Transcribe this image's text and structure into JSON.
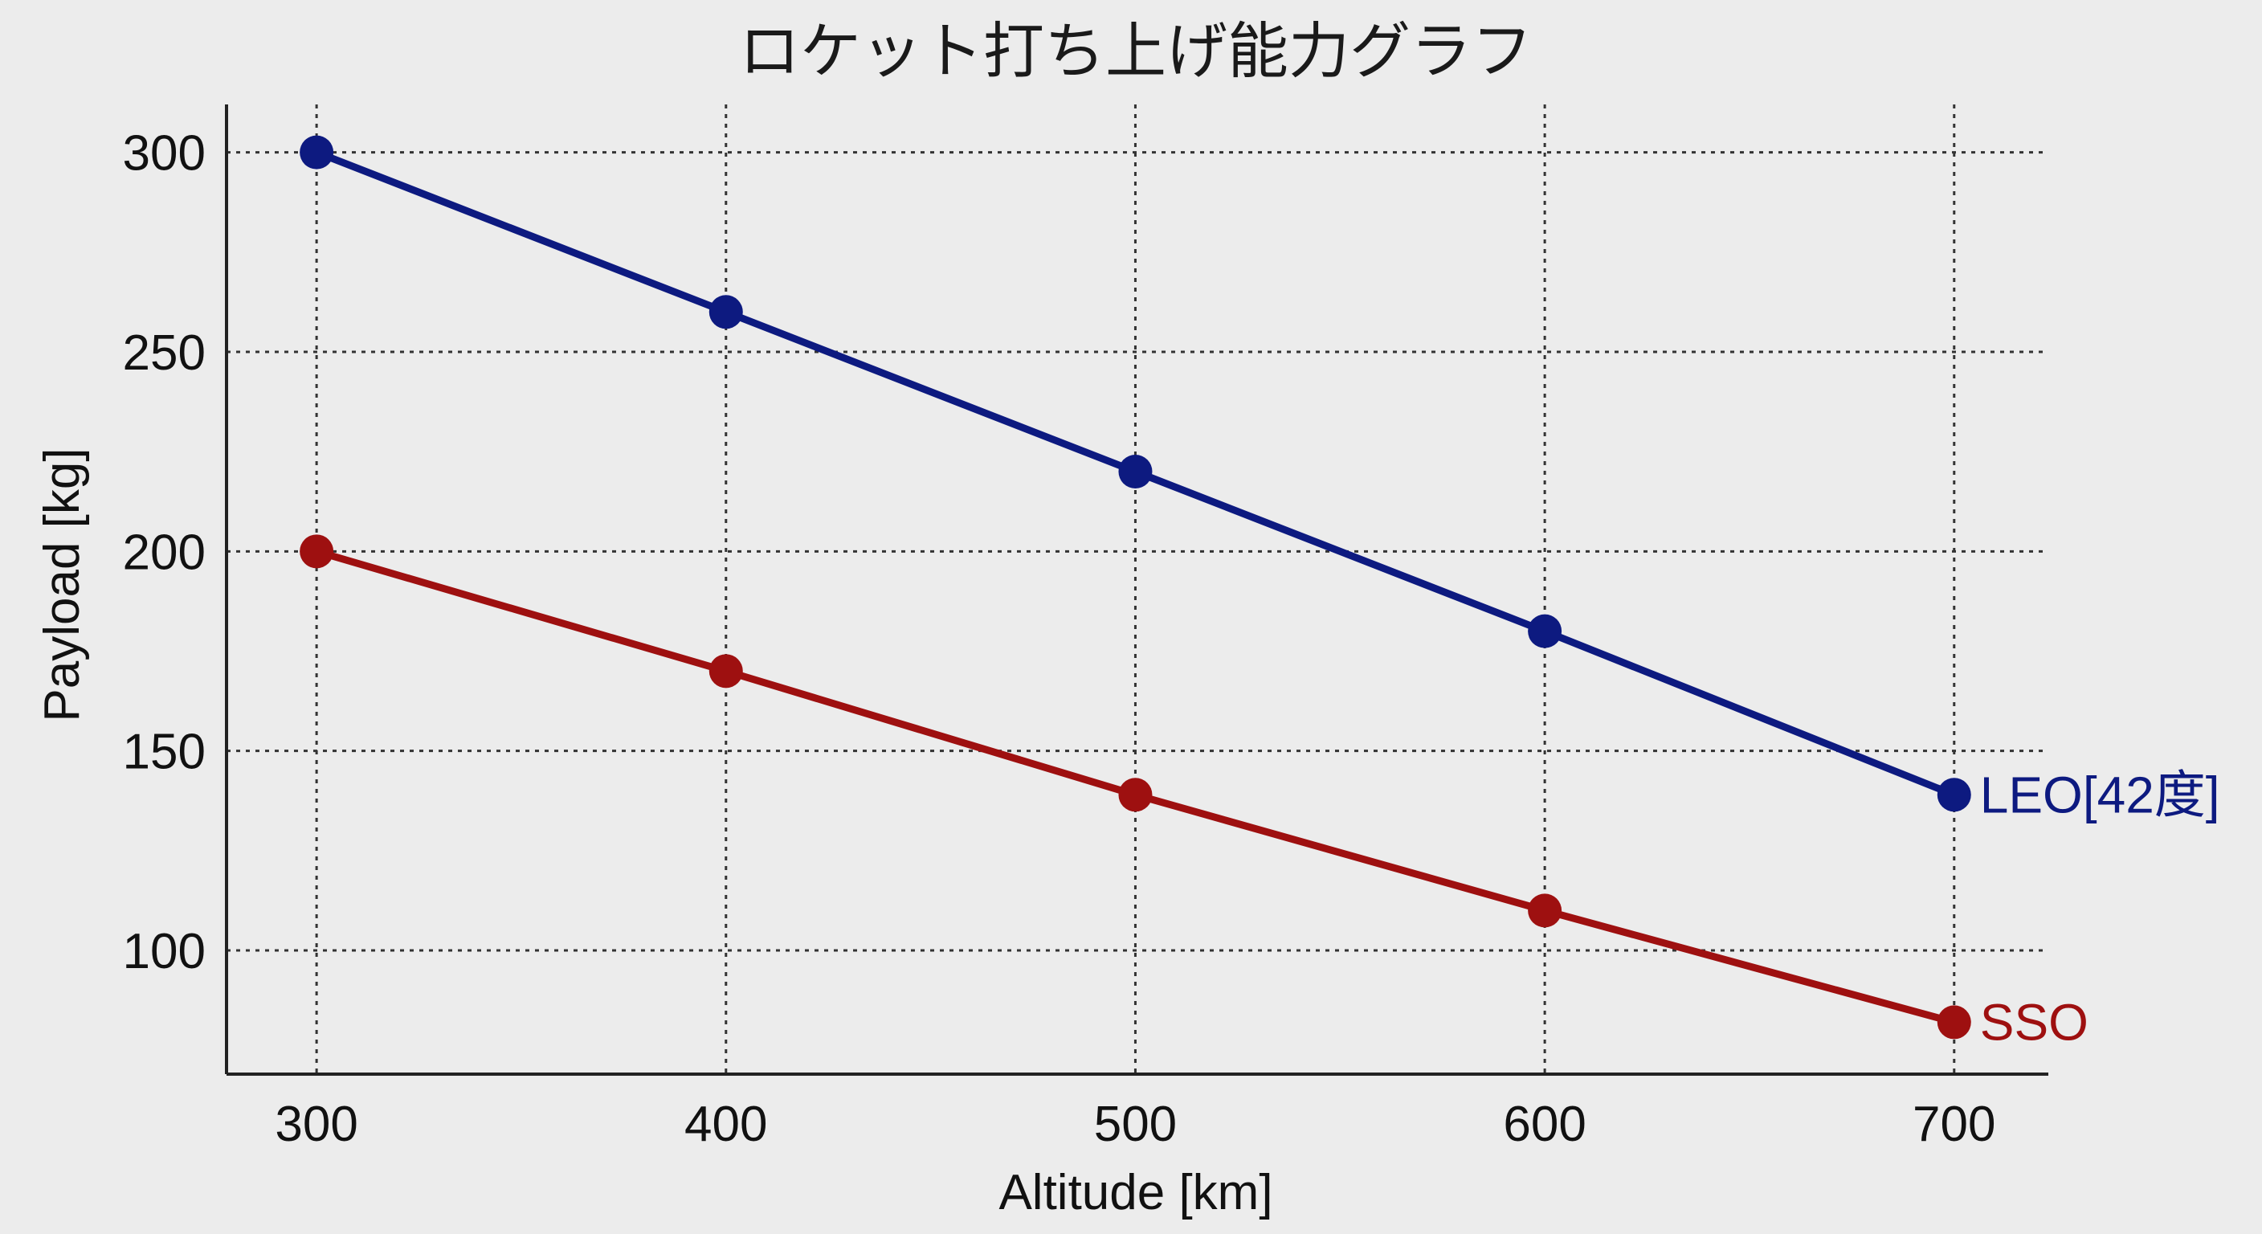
{
  "chart_data": {
    "type": "line",
    "title": "ロケット打ち上げ能力グラフ",
    "xlabel": "Altitude [km]",
    "ylabel": "Payload [kg]",
    "x": [
      300,
      400,
      500,
      600,
      700
    ],
    "xticks": [
      "300",
      "400",
      "500",
      "600",
      "700"
    ],
    "yticks": [
      "100",
      "150",
      "200",
      "250",
      "300"
    ],
    "xlim": [
      278,
      723
    ],
    "ylim": [
      69,
      312
    ],
    "grid": true,
    "legend": "none (series labeled at line ends)",
    "series": [
      {
        "name": "LEO[42度]",
        "values": [
          300,
          260,
          220,
          180,
          139
        ],
        "color": "#0d1a80"
      },
      {
        "name": "SSO",
        "values": [
          200,
          170,
          139,
          110,
          82
        ],
        "color": "#9e1010"
      }
    ]
  }
}
